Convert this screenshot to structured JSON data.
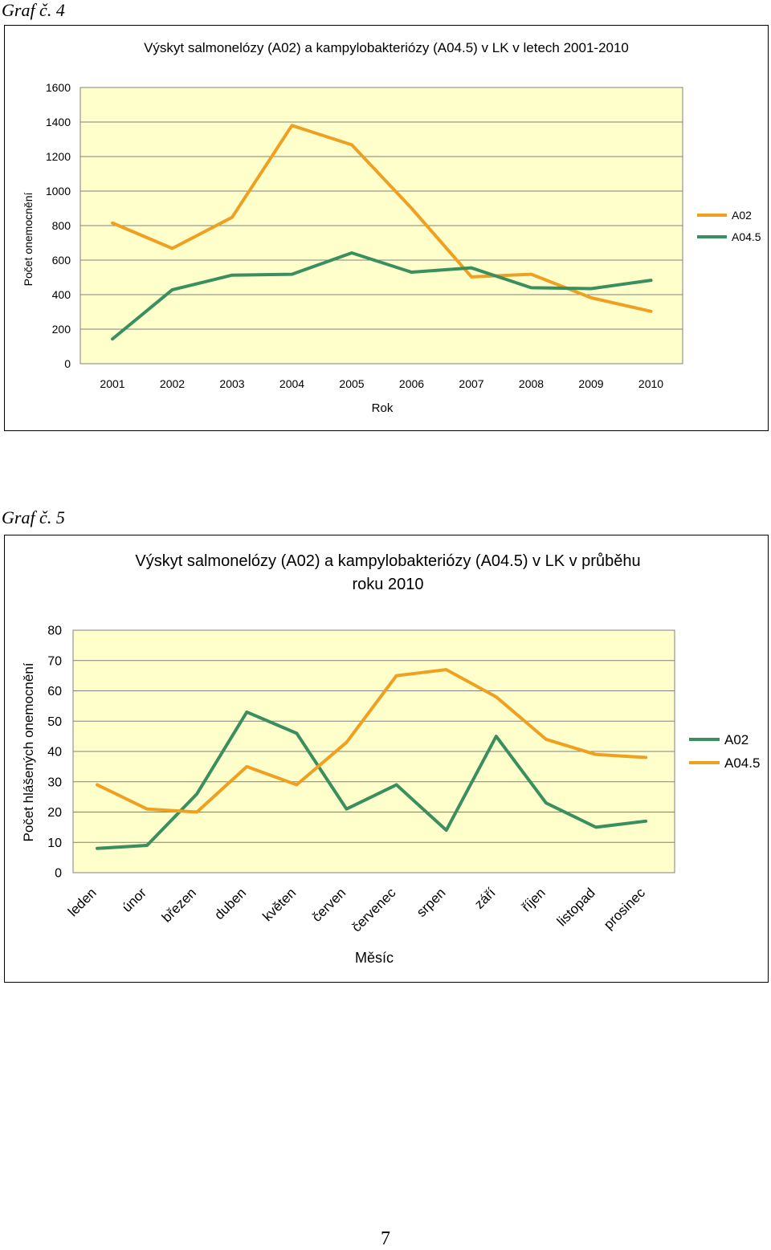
{
  "page": {
    "graf4_label": "Graf č. 4",
    "graf5_label": "Graf č. 5",
    "page_number": "7"
  },
  "chart_data": [
    {
      "type": "line",
      "title": "Výskyt salmonelózy (A02) a kampylobakteriózy (A04.5) v LK v letech 2001-2010",
      "xlabel": "Rok",
      "ylabel": "Počet onemocnění",
      "categories": [
        "2001",
        "2002",
        "2003",
        "2004",
        "2005",
        "2006",
        "2007",
        "2008",
        "2009",
        "2010"
      ],
      "ylim": [
        0,
        1600
      ],
      "yticks": [
        0,
        200,
        400,
        600,
        800,
        1000,
        1200,
        1400,
        1600
      ],
      "grid": true,
      "legend": "right",
      "series": [
        {
          "name": "A02",
          "color": "#f0a020",
          "values": [
            815,
            668,
            848,
            1380,
            1268,
            900,
            503,
            518,
            382,
            303
          ]
        },
        {
          "name": "A04.5",
          "color": "#3a8f5e",
          "values": [
            143,
            428,
            513,
            518,
            642,
            530,
            555,
            440,
            435,
            483
          ]
        }
      ]
    },
    {
      "type": "line",
      "title": "Výskyt salmonelózy (A02) a kampylobakteriózy (A04.5) v LK v průběhu roku 2010",
      "title_lines": [
        "Výskyt salmonelózy (A02) a kampylobakteriózy (A04.5) v LK v průběhu",
        "roku 2010"
      ],
      "xlabel": "Měsíc",
      "ylabel": "Počet hlášených onemocnění",
      "categories": [
        "leden",
        "únor",
        "březen",
        "duben",
        "květen",
        "červen",
        "červenec",
        "srpen",
        "září",
        "říjen",
        "listopad",
        "prosinec"
      ],
      "ylim": [
        0,
        80
      ],
      "yticks": [
        0,
        10,
        20,
        30,
        40,
        50,
        60,
        70,
        80
      ],
      "grid": true,
      "legend": "right",
      "series": [
        {
          "name": "A02",
          "color": "#3a8f5e",
          "values": [
            8,
            9,
            26,
            53,
            46,
            21,
            29,
            14,
            45,
            23,
            15,
            17
          ]
        },
        {
          "name": "A04.5",
          "color": "#f0a020",
          "values": [
            29,
            21,
            20,
            35,
            29,
            43,
            65,
            67,
            58,
            44,
            39,
            38
          ]
        }
      ]
    }
  ]
}
